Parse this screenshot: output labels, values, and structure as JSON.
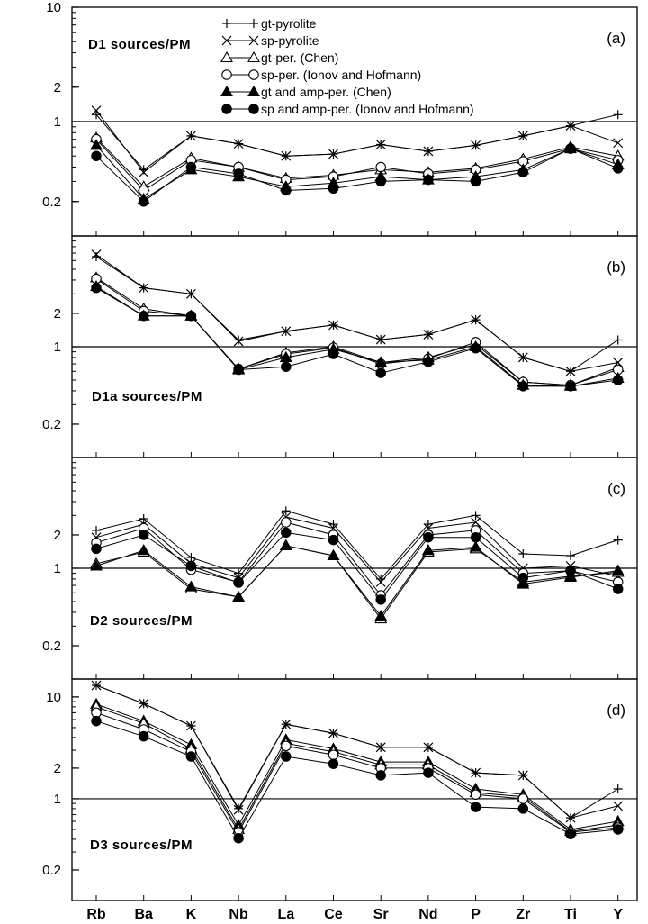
{
  "chart_data": {
    "type": "line",
    "yscale": "log",
    "categories": [
      "Rb",
      "Ba",
      "K",
      "Nb",
      "La",
      "Ce",
      "Sr",
      "Nd",
      "P",
      "Zr",
      "Ti",
      "Y"
    ],
    "legend": {
      "placement": "top-center",
      "entries": [
        {
          "label": "gt-pyrolite",
          "marker": "plus"
        },
        {
          "label": "sp-pyrolite",
          "marker": "cross"
        },
        {
          "label": "gt-per. (Chen)",
          "marker": "triangle-open"
        },
        {
          "label": "sp-per. (Ionov and Hofmann)",
          "marker": "circle-open"
        },
        {
          "label": "gt and amp-per. (Chen)",
          "marker": "triangle-filled"
        },
        {
          "label": "sp and amp-per. (Ionov and Hofmann)",
          "marker": "circle-filled"
        }
      ]
    },
    "panels": [
      {
        "tag": "(a)",
        "title": "D1 sources/PM",
        "ylim": [
          0.1,
          10
        ],
        "yticks": [
          {
            "value": 10,
            "label": "10"
          },
          {
            "value": 2,
            "label": "2"
          },
          {
            "value": 1,
            "label": "1"
          },
          {
            "value": 0.2,
            "label": "0.2"
          }
        ],
        "reference_line": 1,
        "series": [
          {
            "marker": "plus",
            "values": [
              1.15,
              0.38,
              0.75,
              0.64,
              0.5,
              0.52,
              0.63,
              0.55,
              0.62,
              0.75,
              0.92,
              1.15
            ]
          },
          {
            "marker": "cross",
            "values": [
              1.25,
              0.36,
              0.75,
              0.64,
              0.5,
              0.52,
              0.63,
              0.55,
              0.62,
              0.75,
              0.92,
              0.65
            ]
          },
          {
            "marker": "triangle-open",
            "values": [
              0.72,
              0.27,
              0.48,
              0.4,
              0.32,
              0.34,
              0.38,
              0.36,
              0.39,
              0.47,
              0.6,
              0.5
            ]
          },
          {
            "marker": "circle-open",
            "values": [
              0.7,
              0.25,
              0.46,
              0.4,
              0.31,
              0.33,
              0.4,
              0.35,
              0.38,
              0.45,
              0.58,
              0.46
            ]
          },
          {
            "marker": "triangle-filled",
            "values": [
              0.62,
              0.21,
              0.38,
              0.33,
              0.27,
              0.29,
              0.33,
              0.31,
              0.33,
              0.38,
              0.58,
              0.42
            ]
          },
          {
            "marker": "circle-filled",
            "values": [
              0.5,
              0.2,
              0.4,
              0.35,
              0.25,
              0.26,
              0.3,
              0.31,
              0.3,
              0.36,
              0.58,
              0.39
            ]
          }
        ]
      },
      {
        "tag": "(b)",
        "title": "D1a sources/PM",
        "ylim": [
          0.1,
          10
        ],
        "yticks": [
          {
            "value": 2,
            "label": "2"
          },
          {
            "value": 1,
            "label": "1"
          },
          {
            "value": 0.2,
            "label": "0.2"
          }
        ],
        "reference_line": 1,
        "series": [
          {
            "marker": "plus",
            "values": [
              6.5,
              3.4,
              3.0,
              1.15,
              1.38,
              1.57,
              1.16,
              1.29,
              1.75,
              0.8,
              0.6,
              1.15
            ]
          },
          {
            "marker": "cross",
            "values": [
              6.8,
              3.4,
              3.0,
              1.12,
              1.38,
              1.57,
              1.16,
              1.29,
              1.75,
              0.8,
              0.6,
              0.72
            ]
          },
          {
            "marker": "triangle-open",
            "values": [
              4.2,
              2.2,
              1.9,
              0.63,
              0.88,
              1.0,
              0.72,
              0.8,
              1.05,
              0.48,
              0.45,
              0.65
            ]
          },
          {
            "marker": "circle-open",
            "values": [
              4.1,
              2.1,
              1.9,
              0.63,
              0.86,
              0.98,
              0.7,
              0.78,
              1.1,
              0.48,
              0.45,
              0.62
            ]
          },
          {
            "marker": "triangle-filled",
            "values": [
              3.5,
              1.9,
              1.9,
              0.62,
              0.8,
              0.95,
              0.72,
              0.76,
              1.0,
              0.45,
              0.44,
              0.52
            ]
          },
          {
            "marker": "circle-filled",
            "values": [
              3.4,
              1.9,
              1.9,
              0.62,
              0.66,
              0.86,
              0.58,
              0.73,
              0.97,
              0.44,
              0.44,
              0.5
            ]
          }
        ]
      },
      {
        "tag": "(c)",
        "title": "D2 sources/PM",
        "ylim": [
          0.1,
          10
        ],
        "yticks": [
          {
            "value": 2,
            "label": "2"
          },
          {
            "value": 1,
            "label": "1"
          },
          {
            "value": 0.2,
            "label": "0.2"
          }
        ],
        "reference_line": 1,
        "series": [
          {
            "marker": "plus",
            "values": [
              2.2,
              2.8,
              1.25,
              0.9,
              3.3,
              2.5,
              0.8,
              2.5,
              3.0,
              1.35,
              1.3,
              1.8
            ]
          },
          {
            "marker": "cross",
            "values": [
              1.9,
              2.5,
              1.1,
              0.82,
              2.9,
              2.3,
              0.75,
              2.3,
              2.6,
              1.0,
              1.05,
              0.85
            ]
          },
          {
            "marker": "circle-open",
            "values": [
              1.7,
              2.3,
              0.97,
              0.75,
              2.6,
              2.0,
              0.57,
              2.0,
              2.2,
              0.9,
              0.95,
              0.75
            ]
          },
          {
            "marker": "circle-filled",
            "values": [
              1.5,
              2.0,
              1.05,
              0.74,
              2.1,
              1.8,
              0.52,
              1.9,
              1.9,
              0.82,
              0.95,
              0.65
            ]
          },
          {
            "marker": "triangle-open",
            "values": [
              1.1,
              1.4,
              0.65,
              0.55,
              1.6,
              1.3,
              0.35,
              1.4,
              1.5,
              0.75,
              0.85,
              0.92
            ]
          },
          {
            "marker": "triangle-filled",
            "values": [
              1.05,
              1.45,
              0.68,
              0.55,
              1.6,
              1.3,
              0.37,
              1.45,
              1.55,
              0.72,
              0.83,
              0.95
            ]
          }
        ]
      },
      {
        "tag": "(d)",
        "title": "D3 sources/PM",
        "ylim": [
          0.1,
          15
        ],
        "yticks": [
          {
            "value": 10,
            "label": "10"
          },
          {
            "value": 2,
            "label": "2"
          },
          {
            "value": 1,
            "label": "1"
          },
          {
            "value": 0.2,
            "label": "0.2"
          }
        ],
        "reference_line": 1,
        "series": [
          {
            "marker": "plus",
            "values": [
              13.0,
              8.6,
              5.2,
              0.8,
              5.4,
              4.4,
              3.2,
              3.2,
              1.8,
              1.7,
              0.65,
              1.25
            ]
          },
          {
            "marker": "cross",
            "values": [
              13.0,
              8.6,
              5.2,
              0.78,
              5.4,
              4.4,
              3.2,
              3.2,
              1.8,
              1.7,
              0.65,
              0.85
            ]
          },
          {
            "marker": "triangle-filled",
            "values": [
              8.5,
              5.8,
              3.4,
              0.55,
              3.8,
              3.1,
              2.3,
              2.3,
              1.25,
              1.1,
              0.5,
              0.6
            ]
          },
          {
            "marker": "triangle-open",
            "values": [
              8.0,
              5.5,
              3.1,
              0.5,
              3.5,
              2.9,
              2.15,
              2.15,
              1.15,
              1.05,
              0.48,
              0.55
            ]
          },
          {
            "marker": "circle-open",
            "values": [
              7.0,
              4.8,
              2.9,
              0.47,
              3.3,
              2.7,
              2.0,
              2.0,
              1.1,
              1.0,
              0.47,
              0.52
            ]
          },
          {
            "marker": "circle-filled",
            "values": [
              5.8,
              4.1,
              2.6,
              0.41,
              2.6,
              2.2,
              1.7,
              1.8,
              0.83,
              0.8,
              0.45,
              0.5
            ]
          }
        ]
      }
    ]
  }
}
